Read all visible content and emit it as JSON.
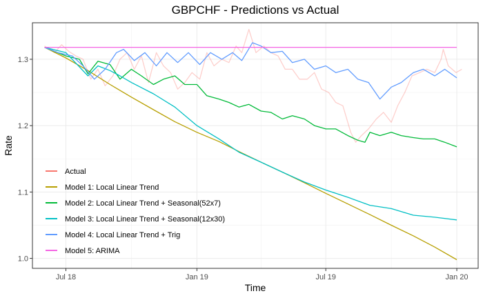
{
  "chart_data": {
    "type": "line",
    "title": "GBPCHF - Predictions vs Actual",
    "xlabel": "Time",
    "ylabel": "Rate",
    "xlim": [
      "2018-05-15",
      "2020-01-31"
    ],
    "ylim": [
      0.985,
      1.355
    ],
    "x_ticks": [
      {
        "date": "2018-07-01",
        "label": "Jul 18"
      },
      {
        "date": "2019-01-01",
        "label": "Jan 19"
      },
      {
        "date": "2019-07-01",
        "label": "Jul 19"
      },
      {
        "date": "2020-01-01",
        "label": "Jan 20"
      }
    ],
    "y_ticks": [
      {
        "value": 1.0,
        "label": "1.0"
      },
      {
        "value": 1.1,
        "label": "1.1"
      },
      {
        "value": 1.2,
        "label": "1.2"
      },
      {
        "value": 1.3,
        "label": "1.3"
      }
    ],
    "grid": true,
    "legend_position": "bottom-left",
    "series": [
      {
        "name": "Actual",
        "color": "#F8766D",
        "opacity": 0.35,
        "x": [
          "2018-06-01",
          "2018-06-08",
          "2018-06-15",
          "2018-06-25",
          "2018-07-05",
          "2018-07-15",
          "2018-07-25",
          "2018-08-05",
          "2018-08-15",
          "2018-08-25",
          "2018-09-05",
          "2018-09-15",
          "2018-09-25",
          "2018-10-05",
          "2018-10-15",
          "2018-10-25",
          "2018-11-05",
          "2018-11-15",
          "2018-11-25",
          "2018-12-05",
          "2018-12-15",
          "2018-12-25",
          "2019-01-05",
          "2019-01-15",
          "2019-01-25",
          "2019-02-05",
          "2019-02-15",
          "2019-02-25",
          "2019-03-05",
          "2019-03-15",
          "2019-03-25",
          "2019-04-05",
          "2019-04-15",
          "2019-04-25",
          "2019-05-05",
          "2019-05-15",
          "2019-05-25",
          "2019-06-05",
          "2019-06-15",
          "2019-06-25",
          "2019-07-05",
          "2019-07-15",
          "2019-07-25",
          "2019-08-05",
          "2019-08-12",
          "2019-08-20",
          "2019-08-30",
          "2019-09-10",
          "2019-09-20",
          "2019-10-01",
          "2019-10-10",
          "2019-10-20",
          "2019-10-30",
          "2019-11-10",
          "2019-11-20",
          "2019-12-01",
          "2019-12-10",
          "2019-12-13",
          "2019-12-20",
          "2019-12-31",
          "2020-01-08"
        ],
        "values": [
          1.32,
          1.315,
          1.31,
          1.322,
          1.312,
          1.305,
          1.3,
          1.27,
          1.285,
          1.26,
          1.275,
          1.3,
          1.31,
          1.285,
          1.305,
          1.265,
          1.31,
          1.29,
          1.28,
          1.255,
          1.265,
          1.28,
          1.27,
          1.31,
          1.29,
          1.3,
          1.295,
          1.32,
          1.31,
          1.345,
          1.31,
          1.32,
          1.31,
          1.305,
          1.285,
          1.285,
          1.27,
          1.27,
          1.28,
          1.255,
          1.25,
          1.235,
          1.23,
          1.19,
          1.175,
          1.185,
          1.195,
          1.21,
          1.22,
          1.205,
          1.23,
          1.25,
          1.275,
          1.28,
          1.285,
          1.28,
          1.3,
          1.315,
          1.29,
          1.28,
          1.285
        ]
      },
      {
        "name": "Model 1: Local Linear Trend",
        "color": "#B79F00",
        "opacity": 1,
        "x": [
          "2018-06-01",
          "2018-07-01",
          "2018-08-01",
          "2018-09-01",
          "2018-10-01",
          "2018-11-01",
          "2018-12-01",
          "2019-01-01",
          "2019-02-01",
          "2019-03-01",
          "2019-04-01",
          "2019-05-01",
          "2019-06-01",
          "2019-07-01",
          "2019-08-01",
          "2019-09-01",
          "2019-10-01",
          "2019-11-01",
          "2019-12-01",
          "2020-01-01"
        ],
        "values": [
          1.318,
          1.302,
          1.283,
          1.262,
          1.243,
          1.224,
          1.206,
          1.19,
          1.176,
          1.161,
          1.145,
          1.13,
          1.114,
          1.098,
          1.082,
          1.066,
          1.05,
          1.034,
          1.017,
          0.998
        ]
      },
      {
        "name": "Model 2: Local Linear Trend + Seasonal(52x7)",
        "color": "#00BA38",
        "opacity": 1,
        "x": [
          "2018-06-01",
          "2018-07-01",
          "2018-07-20",
          "2018-08-01",
          "2018-08-15",
          "2018-09-01",
          "2018-09-15",
          "2018-10-01",
          "2018-10-15",
          "2018-11-01",
          "2018-11-15",
          "2018-12-01",
          "2018-12-15",
          "2019-01-01",
          "2019-01-15",
          "2019-02-01",
          "2019-02-15",
          "2019-03-01",
          "2019-03-15",
          "2019-04-01",
          "2019-04-15",
          "2019-05-01",
          "2019-05-15",
          "2019-06-01",
          "2019-06-15",
          "2019-07-01",
          "2019-07-15",
          "2019-08-01",
          "2019-08-15",
          "2019-08-25",
          "2019-09-01",
          "2019-09-15",
          "2019-10-01",
          "2019-10-15",
          "2019-11-01",
          "2019-11-15",
          "2019-12-01",
          "2019-12-15",
          "2020-01-01"
        ],
        "values": [
          1.318,
          1.305,
          1.3,
          1.278,
          1.297,
          1.292,
          1.27,
          1.285,
          1.275,
          1.262,
          1.27,
          1.275,
          1.262,
          1.262,
          1.245,
          1.24,
          1.235,
          1.228,
          1.232,
          1.222,
          1.22,
          1.21,
          1.215,
          1.21,
          1.2,
          1.195,
          1.195,
          1.185,
          1.178,
          1.175,
          1.19,
          1.185,
          1.19,
          1.185,
          1.182,
          1.18,
          1.18,
          1.175,
          1.168
        ]
      },
      {
        "name": "Model 3: Local Linear Trend + Seasonal(12x30)",
        "color": "#00BFC4",
        "opacity": 1,
        "x": [
          "2018-06-01",
          "2018-07-01",
          "2018-08-01",
          "2018-08-15",
          "2018-09-01",
          "2018-09-15",
          "2018-10-01",
          "2018-11-01",
          "2018-12-01",
          "2019-01-01",
          "2019-02-01",
          "2019-03-01",
          "2019-04-01",
          "2019-05-01",
          "2019-06-01",
          "2019-07-01",
          "2019-08-01",
          "2019-09-01",
          "2019-10-01",
          "2019-11-01",
          "2019-12-01",
          "2020-01-01"
        ],
        "values": [
          1.318,
          1.31,
          1.275,
          1.29,
          1.283,
          1.275,
          1.265,
          1.248,
          1.228,
          1.2,
          1.18,
          1.16,
          1.145,
          1.13,
          1.115,
          1.103,
          1.092,
          1.08,
          1.075,
          1.065,
          1.062,
          1.058
        ]
      },
      {
        "name": "Model 4: Local Linear Trend + Trig",
        "color": "#619CFF",
        "opacity": 1,
        "x": [
          "2018-06-01",
          "2018-06-20",
          "2018-07-10",
          "2018-07-25",
          "2018-08-10",
          "2018-08-25",
          "2018-09-10",
          "2018-09-20",
          "2018-10-05",
          "2018-10-20",
          "2018-11-05",
          "2018-11-20",
          "2018-12-05",
          "2018-12-20",
          "2019-01-05",
          "2019-01-20",
          "2019-02-05",
          "2019-02-20",
          "2019-03-05",
          "2019-03-20",
          "2019-04-01",
          "2019-04-15",
          "2019-05-01",
          "2019-05-15",
          "2019-06-01",
          "2019-06-15",
          "2019-07-01",
          "2019-07-15",
          "2019-08-01",
          "2019-08-15",
          "2019-08-30",
          "2019-09-15",
          "2019-10-01",
          "2019-10-15",
          "2019-11-01",
          "2019-11-15",
          "2019-12-01",
          "2019-12-15",
          "2020-01-01"
        ],
        "values": [
          1.318,
          1.31,
          1.305,
          1.29,
          1.27,
          1.285,
          1.31,
          1.315,
          1.298,
          1.31,
          1.29,
          1.31,
          1.295,
          1.31,
          1.292,
          1.31,
          1.3,
          1.31,
          1.298,
          1.325,
          1.32,
          1.31,
          1.312,
          1.295,
          1.3,
          1.285,
          1.29,
          1.28,
          1.285,
          1.27,
          1.265,
          1.24,
          1.258,
          1.265,
          1.28,
          1.285,
          1.275,
          1.285,
          1.272
        ]
      },
      {
        "name": "Model 5: ARIMA",
        "color": "#F564E3",
        "opacity": 1,
        "x": [
          "2018-06-01",
          "2020-01-01"
        ],
        "values": [
          1.318,
          1.318
        ]
      }
    ]
  }
}
